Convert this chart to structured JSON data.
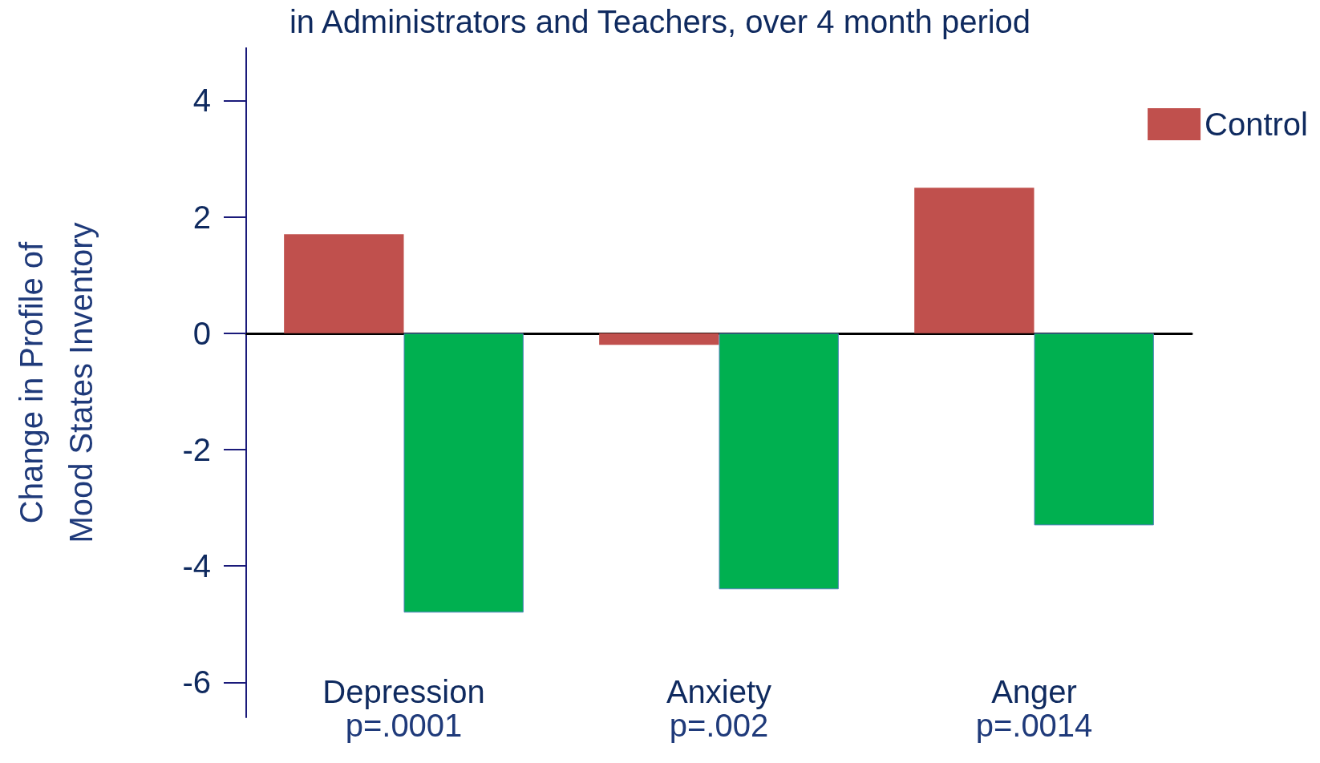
{
  "chart_data": {
    "type": "bar",
    "title": "in Administrators and Teachers, over 4 month period",
    "ylabel": "Change in Profile of\nMood States Inventory",
    "categories": [
      "Depression",
      "Anxiety",
      "Anger"
    ],
    "series": [
      {
        "name": "Control",
        "color": "#c0504d",
        "values": [
          1.7,
          -0.2,
          2.5
        ]
      },
      {
        "color": "#00b050",
        "values": [
          -4.8,
          -4.4,
          -3.3
        ]
      }
    ],
    "ylim": [
      -6.6,
      4.9
    ],
    "yticks": [
      -6,
      -4,
      -2,
      0,
      2,
      4
    ],
    "legend": "top right",
    "annotations": [
      "p=.0001",
      "p=.002",
      "p=.0014"
    ]
  }
}
